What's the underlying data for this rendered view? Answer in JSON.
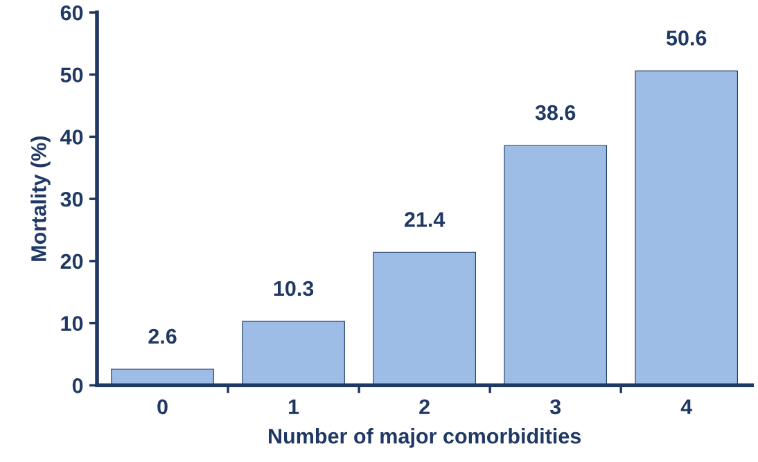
{
  "chart_data": {
    "type": "bar",
    "xlabel": "Number of major comorbidities",
    "ylabel": "Mortality (%)",
    "categories": [
      "0",
      "1",
      "2",
      "3",
      "4"
    ],
    "values": [
      2.6,
      10.3,
      21.4,
      38.6,
      50.6
    ],
    "color": "#9dbde6",
    "ylim": [
      0,
      60
    ],
    "yticks": [
      0,
      10,
      20,
      30,
      40,
      50,
      60
    ],
    "data_labels": true,
    "grid": false,
    "legend": false
  }
}
